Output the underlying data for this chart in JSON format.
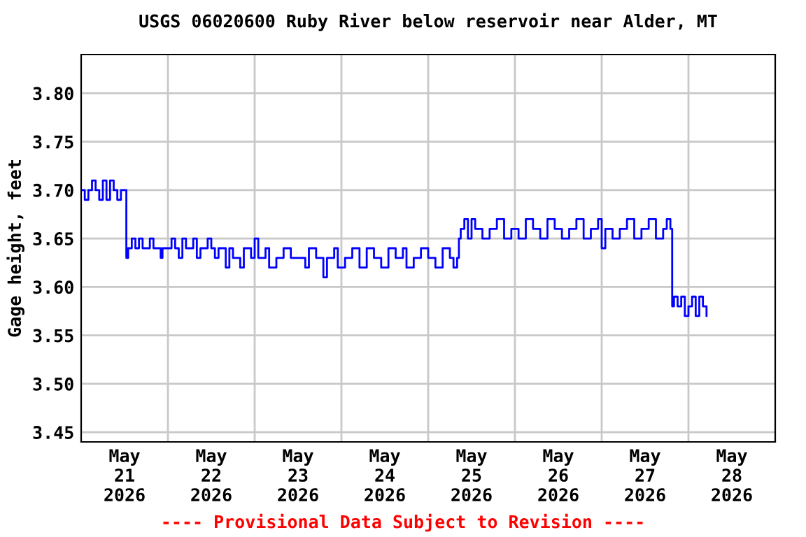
{
  "chart_data": {
    "type": "step",
    "title": "USGS 06020600 Ruby River below reservoir near Alder, MT",
    "ylabel": "Gage height, feet",
    "annotations": [
      "---- Provisional Data Subject to Revision ----"
    ],
    "x": [
      "2026-05-21T00:00",
      "2026-05-21T01:00",
      "2026-05-21T02:00",
      "2026-05-21T03:00",
      "2026-05-21T04:00",
      "2026-05-21T05:00",
      "2026-05-21T06:00",
      "2026-05-21T07:00",
      "2026-05-21T08:00",
      "2026-05-21T09:00",
      "2026-05-21T10:00",
      "2026-05-21T11:00",
      "2026-05-21T12:00",
      "2026-05-21T12:30",
      "2026-05-21T13:00",
      "2026-05-21T14:00",
      "2026-05-21T15:00",
      "2026-05-21T16:00",
      "2026-05-21T17:00",
      "2026-05-21T19:00",
      "2026-05-21T20:00",
      "2026-05-21T22:00",
      "2026-05-21T22:30",
      "2026-05-22T01:00",
      "2026-05-22T02:00",
      "2026-05-22T03:00",
      "2026-05-22T04:00",
      "2026-05-22T05:00",
      "2026-05-22T07:00",
      "2026-05-22T08:00",
      "2026-05-22T09:00",
      "2026-05-22T11:00",
      "2026-05-22T12:00",
      "2026-05-22T13:00",
      "2026-05-22T14:00",
      "2026-05-22T16:00",
      "2026-05-22T17:00",
      "2026-05-22T18:00",
      "2026-05-22T20:00",
      "2026-05-22T21:00",
      "2026-05-22T23:00",
      "2026-05-23T00:00",
      "2026-05-23T01:00",
      "2026-05-23T03:00",
      "2026-05-23T04:00",
      "2026-05-23T06:00",
      "2026-05-23T08:00",
      "2026-05-23T10:00",
      "2026-05-23T12:00",
      "2026-05-23T14:00",
      "2026-05-23T15:00",
      "2026-05-23T17:00",
      "2026-05-23T19:00",
      "2026-05-23T20:00",
      "2026-05-23T22:00",
      "2026-05-23T23:00",
      "2026-05-24T01:00",
      "2026-05-24T03:00",
      "2026-05-24T05:00",
      "2026-05-24T07:00",
      "2026-05-24T09:00",
      "2026-05-24T11:00",
      "2026-05-24T13:00",
      "2026-05-24T15:00",
      "2026-05-24T17:00",
      "2026-05-24T18:00",
      "2026-05-24T20:00",
      "2026-05-24T22:00",
      "2026-05-25T00:00",
      "2026-05-25T02:00",
      "2026-05-25T04:00",
      "2026-05-25T06:00",
      "2026-05-25T07:00",
      "2026-05-25T08:00",
      "2026-05-25T08:30",
      "2026-05-25T09:00",
      "2026-05-25T10:00",
      "2026-05-25T11:00",
      "2026-05-25T12:00",
      "2026-05-25T13:00",
      "2026-05-25T15:00",
      "2026-05-25T17:00",
      "2026-05-25T19:00",
      "2026-05-25T21:00",
      "2026-05-25T23:00",
      "2026-05-26T01:00",
      "2026-05-26T03:00",
      "2026-05-26T05:00",
      "2026-05-26T07:00",
      "2026-05-26T09:00",
      "2026-05-26T11:00",
      "2026-05-26T13:00",
      "2026-05-26T15:00",
      "2026-05-26T17:00",
      "2026-05-26T19:00",
      "2026-05-26T21:00",
      "2026-05-26T23:00",
      "2026-05-27T00:00",
      "2026-05-27T01:00",
      "2026-05-27T03:00",
      "2026-05-27T05:00",
      "2026-05-27T07:00",
      "2026-05-27T09:00",
      "2026-05-27T11:00",
      "2026-05-27T13:00",
      "2026-05-27T15:00",
      "2026-05-27T17:00",
      "2026-05-27T18:00",
      "2026-05-27T19:00",
      "2026-05-27T19:30",
      "2026-05-27T20:00",
      "2026-05-27T21:00",
      "2026-05-27T22:00",
      "2026-05-27T23:00",
      "2026-05-28T00:00",
      "2026-05-28T01:00",
      "2026-05-28T02:00",
      "2026-05-28T03:00",
      "2026-05-28T04:00",
      "2026-05-28T05:00"
    ],
    "series": [
      {
        "color": "#0000ff",
        "values": [
          3.7,
          3.69,
          3.7,
          3.71,
          3.7,
          3.69,
          3.71,
          3.69,
          3.71,
          3.7,
          3.69,
          3.7,
          3.7,
          3.63,
          3.64,
          3.65,
          3.64,
          3.65,
          3.64,
          3.65,
          3.64,
          3.63,
          3.64,
          3.65,
          3.64,
          3.63,
          3.65,
          3.64,
          3.65,
          3.63,
          3.64,
          3.65,
          3.64,
          3.63,
          3.64,
          3.62,
          3.64,
          3.63,
          3.62,
          3.64,
          3.63,
          3.65,
          3.63,
          3.64,
          3.62,
          3.63,
          3.64,
          3.63,
          3.63,
          3.62,
          3.64,
          3.63,
          3.61,
          3.63,
          3.64,
          3.62,
          3.63,
          3.64,
          3.62,
          3.64,
          3.63,
          3.62,
          3.64,
          3.63,
          3.64,
          3.62,
          3.63,
          3.64,
          3.63,
          3.62,
          3.64,
          3.63,
          3.62,
          3.63,
          3.65,
          3.66,
          3.67,
          3.65,
          3.67,
          3.66,
          3.65,
          3.66,
          3.67,
          3.65,
          3.66,
          3.65,
          3.67,
          3.66,
          3.65,
          3.67,
          3.66,
          3.65,
          3.66,
          3.67,
          3.65,
          3.66,
          3.67,
          3.64,
          3.66,
          3.65,
          3.66,
          3.67,
          3.65,
          3.66,
          3.67,
          3.65,
          3.66,
          3.67,
          3.66,
          3.58,
          3.59,
          3.58,
          3.59,
          3.57,
          3.58,
          3.59,
          3.57,
          3.59,
          3.58,
          3.57
        ]
      }
    ],
    "xlim": [
      "2026-05-21T00:00",
      "2026-05-29T00:00"
    ],
    "xticks": [
      {
        "value": "2026-05-22T00:00",
        "label": null
      },
      {
        "value": "2026-05-23T00:00",
        "label": null
      },
      {
        "value": "2026-05-24T00:00",
        "label": null
      },
      {
        "value": "2026-05-25T00:00",
        "label": null
      },
      {
        "value": "2026-05-26T00:00",
        "label": null
      },
      {
        "value": "2026-05-27T00:00",
        "label": null
      },
      {
        "value": "2026-05-28T00:00",
        "label": null
      },
      {
        "value": "2026-05-21T12:00",
        "label": "May\n21\n2026"
      },
      {
        "value": "2026-05-22T12:00",
        "label": "May\n22\n2026"
      },
      {
        "value": "2026-05-23T12:00",
        "label": "May\n23\n2026"
      },
      {
        "value": "2026-05-24T12:00",
        "label": "May\n24\n2026"
      },
      {
        "value": "2026-05-25T12:00",
        "label": "May\n25\n2026"
      },
      {
        "value": "2026-05-26T12:00",
        "label": "May\n26\n2026"
      },
      {
        "value": "2026-05-27T12:00",
        "label": "May\n27\n2026"
      },
      {
        "value": "2026-05-28T12:00",
        "label": "May\n28\n2026"
      }
    ],
    "ylim": [
      3.44,
      3.84
    ],
    "yticks": [
      {
        "value": 3.45,
        "label": "3.45"
      },
      {
        "value": 3.5,
        "label": "3.50"
      },
      {
        "value": 3.55,
        "label": "3.55"
      },
      {
        "value": 3.6,
        "label": "3.60"
      },
      {
        "value": 3.65,
        "label": "3.65"
      },
      {
        "value": 3.7,
        "label": "3.70"
      },
      {
        "value": 3.75,
        "label": "3.75"
      },
      {
        "value": 3.8,
        "label": "3.80"
      }
    ],
    "grid": true,
    "legend": false
  }
}
